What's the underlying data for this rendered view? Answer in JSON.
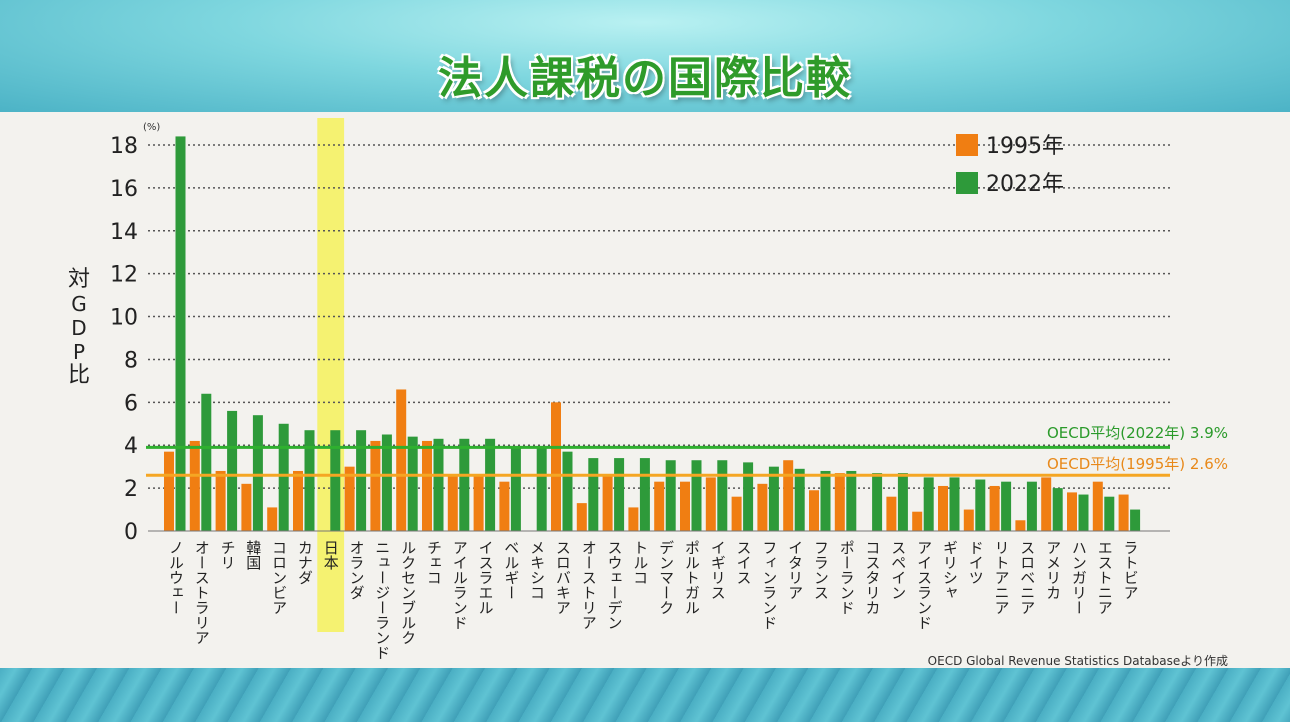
{
  "title": "法人課税の国際比較",
  "source": "OECD Global Revenue Statistics Databaseより作成",
  "chart_data": {
    "type": "bar",
    "title": "法人課税の国際比較",
    "ylabel": "対GDP比",
    "yunit": "(%)",
    "ylim": [
      0,
      18
    ],
    "yticks": [
      0,
      2,
      4,
      6,
      8,
      10,
      12,
      14,
      16,
      18
    ],
    "grid": true,
    "legend_position": "top-right",
    "categories": [
      "ノルウェー",
      "オーストラリア",
      "チリ",
      "韓国",
      "コロンビア",
      "カナダ",
      "日本",
      "オランダ",
      "ニュージーランド",
      "ルクセンブルク",
      "チェコ",
      "アイルランド",
      "イスラエル",
      "ベルギー",
      "メキシコ",
      "スロバキア",
      "オーストリア",
      "スウェーデン",
      "トルコ",
      "デンマーク",
      "ポルトガル",
      "イギリス",
      "スイス",
      "フィンランド",
      "イタリア",
      "フランス",
      "ポーランド",
      "コスタリカ",
      "スペイン",
      "アイスランド",
      "ギリシャ",
      "ドイツ",
      "リトアニア",
      "スロベニア",
      "アメリカ",
      "ハンガリー",
      "エストニア",
      "ラトビア"
    ],
    "highlight_category": "日本",
    "series": [
      {
        "name": "1995年",
        "color": "#f07e12",
        "values": [
          3.7,
          4.2,
          2.8,
          2.2,
          1.1,
          2.8,
          null,
          3.0,
          4.2,
          6.6,
          4.2,
          2.6,
          2.6,
          2.3,
          null,
          6.0,
          1.3,
          2.6,
          1.1,
          2.3,
          2.3,
          2.5,
          1.6,
          2.2,
          3.3,
          1.9,
          2.7,
          null,
          1.6,
          0.9,
          2.1,
          1.0,
          2.1,
          0.5,
          2.5,
          1.8,
          2.3,
          1.7
        ]
      },
      {
        "name": "2022年",
        "color": "#2e9a3a",
        "values": [
          18.4,
          6.4,
          5.6,
          5.4,
          5.0,
          4.7,
          4.7,
          4.7,
          4.5,
          4.4,
          4.3,
          4.3,
          4.3,
          3.9,
          3.9,
          3.7,
          3.4,
          3.4,
          3.4,
          3.3,
          3.3,
          3.3,
          3.2,
          3.0,
          2.9,
          2.8,
          2.8,
          2.7,
          2.7,
          2.5,
          2.5,
          2.4,
          2.3,
          2.3,
          2.0,
          1.7,
          1.6,
          1.0
        ]
      }
    ],
    "reference_lines": [
      {
        "label": "OECD平均(2022年)",
        "value": 3.9,
        "value_label": "3.9%",
        "color": "#2fb02f"
      },
      {
        "label": "OECD平均(1995年)",
        "value": 2.6,
        "value_label": "2.6%",
        "color": "#f5a623"
      }
    ]
  }
}
